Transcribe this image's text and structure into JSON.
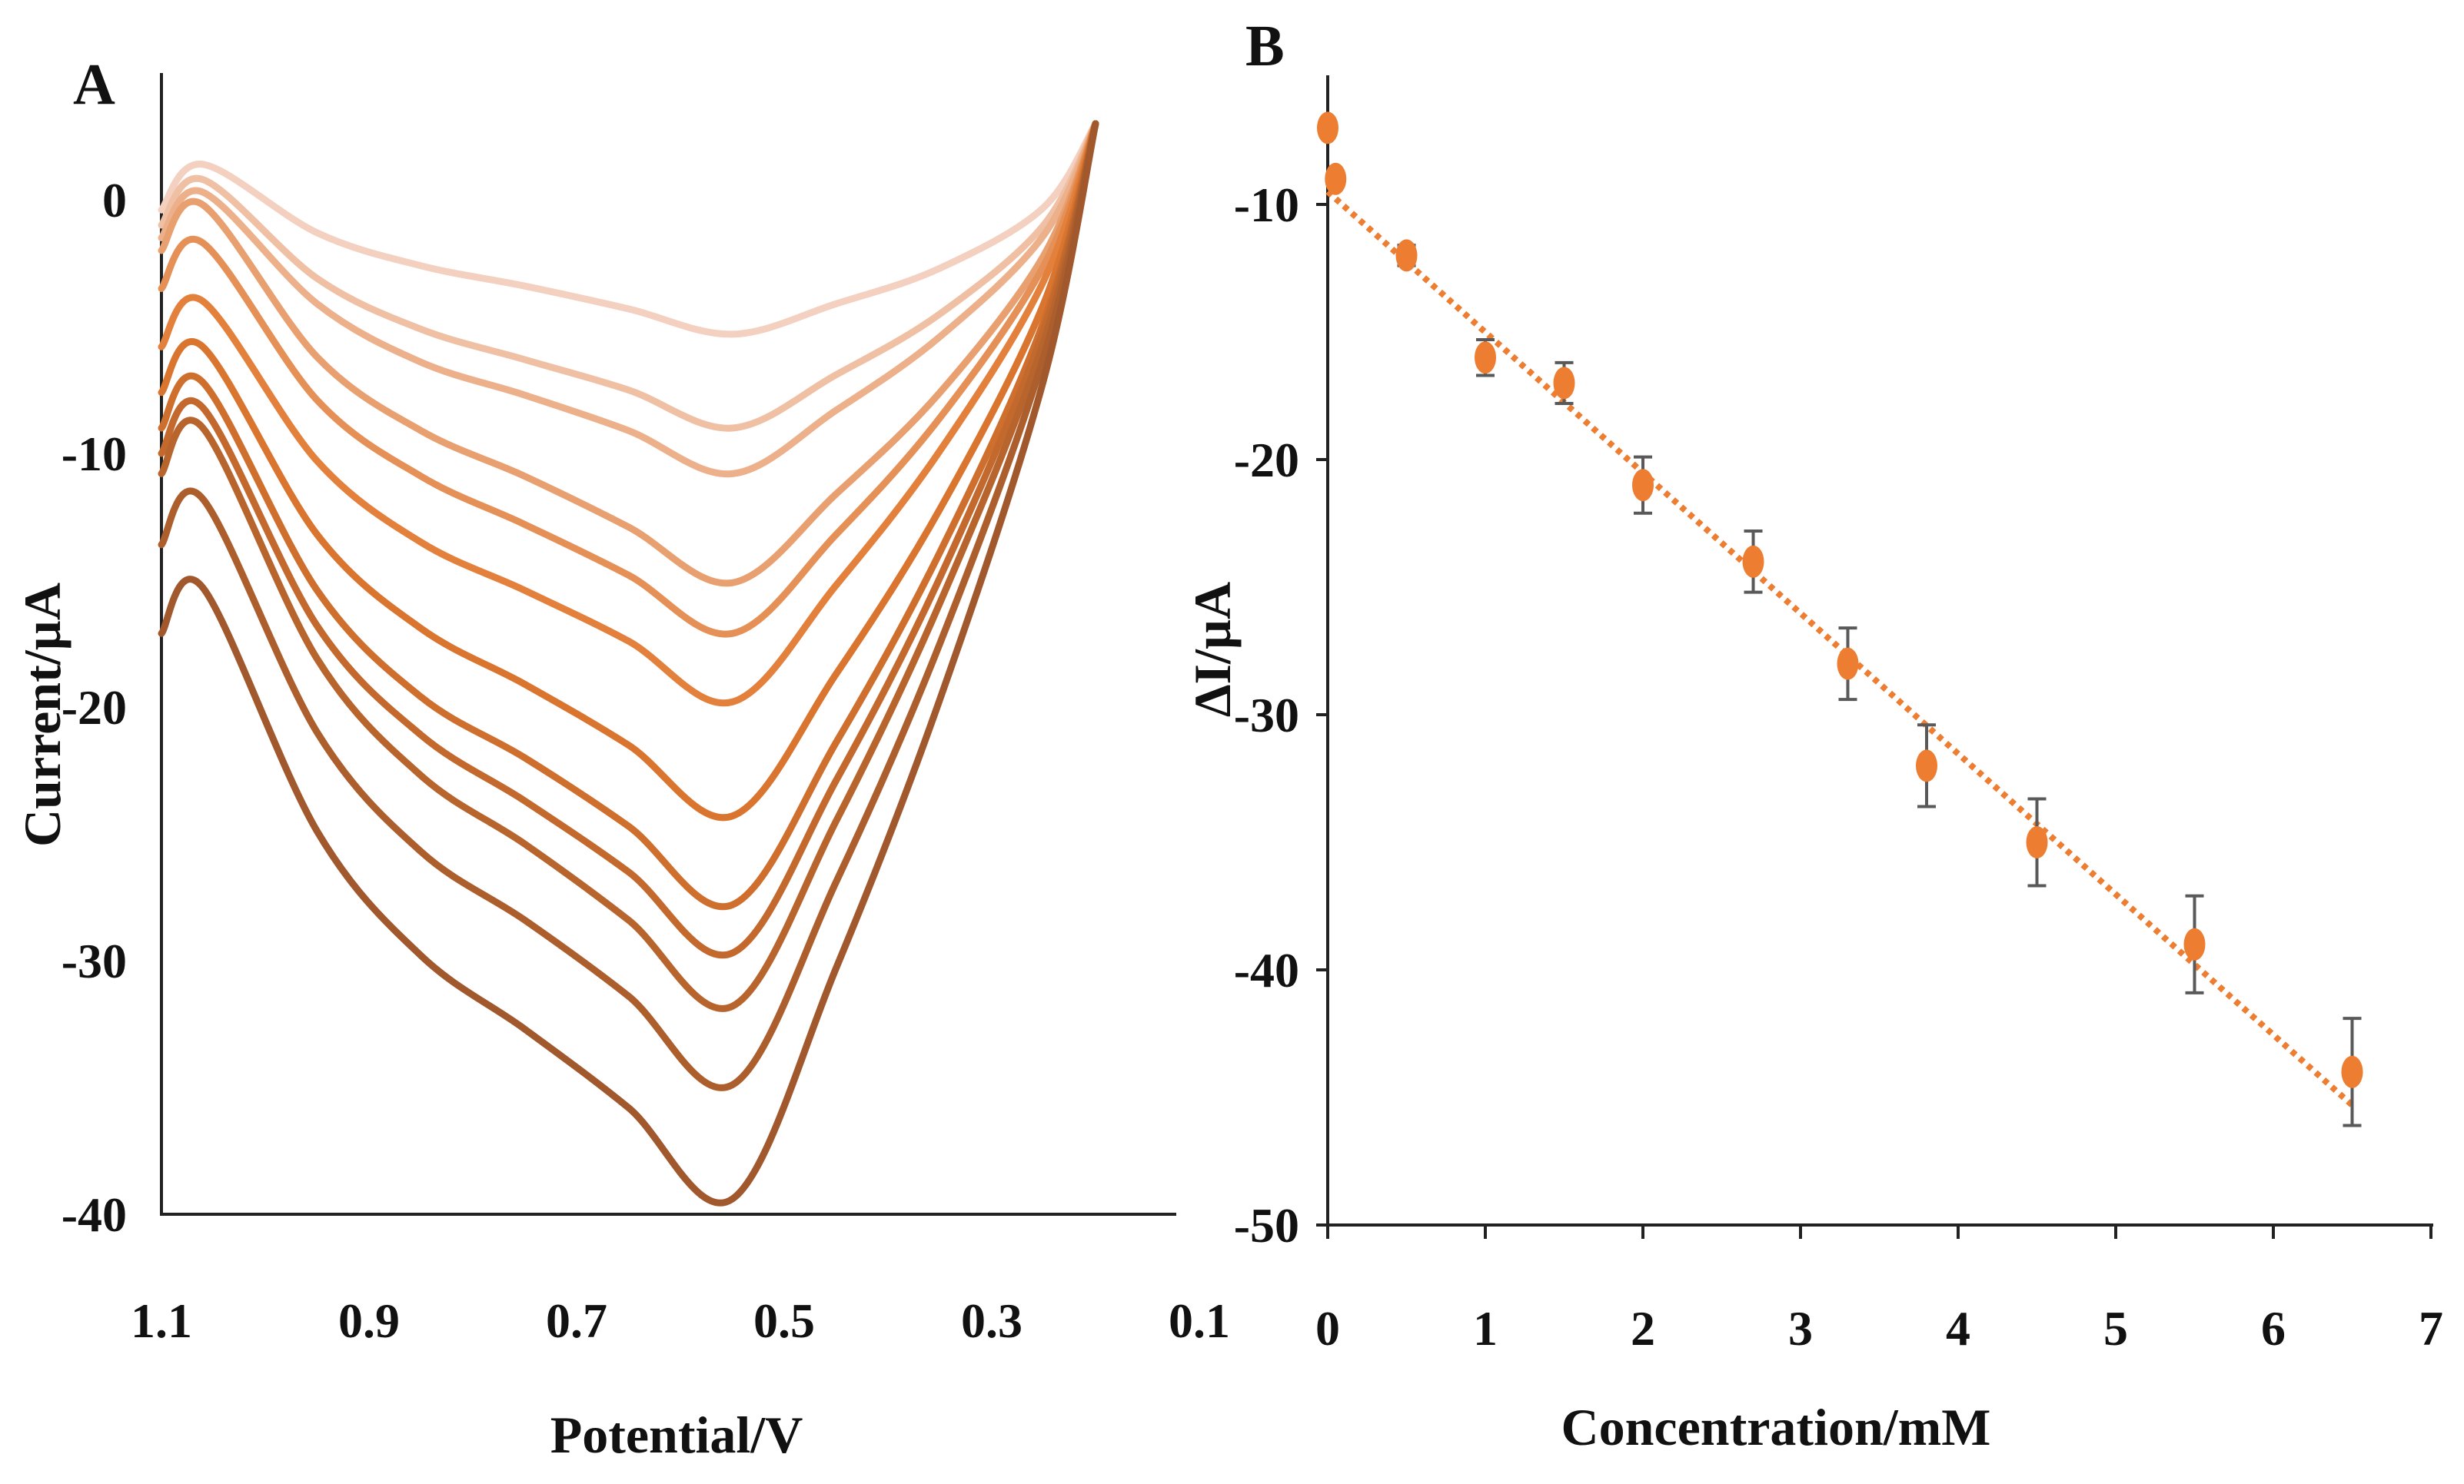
{
  "chart_data": [
    {
      "type": "line",
      "panel_label": "A",
      "xlabel": "Potential/V",
      "ylabel": "Current/µA",
      "xlim": [
        1.1,
        0.1
      ],
      "ylim": [
        -40,
        5
      ],
      "x_ticks": [
        "1.1",
        "0.9",
        "0.7",
        "0.5",
        "0.3",
        "0.1"
      ],
      "x_tick_values": [
        1.1,
        0.9,
        0.7,
        0.5,
        0.3,
        0.1
      ],
      "y_ticks": [
        "0",
        "-10",
        "-20",
        "-30",
        "-40"
      ],
      "y_tick_values": [
        0,
        -10,
        -20,
        -30,
        -40
      ],
      "grid": false,
      "x": [
        1.1,
        1.06,
        0.95,
        0.85,
        0.75,
        0.65,
        0.55,
        0.45,
        0.35,
        0.25,
        0.2
      ],
      "color_light": "#f3d0bf",
      "color_mid": "#e0782f",
      "color_dark": "#a0582c",
      "series": [
        {
          "values": [
            -0.4,
            1.4,
            -1.3,
            -2.6,
            -3.4,
            -4.3,
            -5.3,
            -4.1,
            -2.7,
            -0.3,
            3
          ]
        },
        {
          "values": [
            -1.0,
            0.8,
            -3.1,
            -5.1,
            -6.3,
            -7.5,
            -9.0,
            -6.9,
            -4.5,
            -1.0,
            3
          ]
        },
        {
          "values": [
            -1.5,
            0.3,
            -4.1,
            -6.4,
            -7.7,
            -9.1,
            -10.8,
            -8.3,
            -5.4,
            -1.4,
            3
          ]
        },
        {
          "values": [
            -2.0,
            -0.2,
            -6.2,
            -9.1,
            -10.9,
            -12.9,
            -15.1,
            -11.6,
            -7.6,
            -2.2,
            3
          ]
        },
        {
          "values": [
            -3.5,
            -1.7,
            -7.9,
            -10.9,
            -12.8,
            -14.8,
            -17.1,
            -13.2,
            -8.6,
            -2.6,
            3
          ]
        },
        {
          "values": [
            -5.8,
            -4.0,
            -10.3,
            -13.5,
            -15.4,
            -17.4,
            -19.8,
            -15.2,
            -9.9,
            -3.2,
            3
          ]
        },
        {
          "values": [
            -7.6,
            -5.8,
            -13.2,
            -16.9,
            -19.1,
            -21.5,
            -24.3,
            -18.7,
            -12.2,
            -4.1,
            3
          ]
        },
        {
          "values": [
            -9.0,
            -7.2,
            -15.4,
            -19.6,
            -22.0,
            -24.7,
            -27.8,
            -21.4,
            -13.9,
            -4.8,
            3
          ]
        },
        {
          "values": [
            -10.0,
            -8.2,
            -16.8,
            -21.1,
            -23.7,
            -26.5,
            -29.7,
            -22.9,
            -14.9,
            -5.1,
            3
          ]
        },
        {
          "values": [
            -10.8,
            -9.0,
            -18.1,
            -22.7,
            -25.4,
            -28.4,
            -31.8,
            -24.5,
            -15.9,
            -5.6,
            3
          ]
        },
        {
          "values": [
            -13.6,
            -11.8,
            -21.0,
            -25.7,
            -28.4,
            -31.4,
            -34.9,
            -26.9,
            -17.5,
            -6.2,
            3
          ]
        },
        {
          "values": [
            -17.1,
            -15.3,
            -24.9,
            -29.8,
            -32.7,
            -35.8,
            -39.4,
            -30.3,
            -19.7,
            -7.1,
            3
          ]
        }
      ]
    },
    {
      "type": "scatter",
      "panel_label": "B",
      "xlabel": "Concentration/mM",
      "ylabel": "ΔI/µA",
      "xlim": [
        0,
        7
      ],
      "ylim": [
        -50,
        -5
      ],
      "x_ticks": [
        "0",
        "1",
        "2",
        "3",
        "4",
        "5",
        "6",
        "7"
      ],
      "x_tick_values": [
        0,
        1,
        2,
        3,
        4,
        5,
        6,
        7
      ],
      "y_ticks": [
        "-10",
        "-20",
        "-30",
        "-40",
        "-50"
      ],
      "y_tick_values": [
        -10,
        -20,
        -30,
        -40,
        -50
      ],
      "grid": false,
      "marker_color": "#ed7d31",
      "errorbar_color": "#595959",
      "x": [
        0,
        0.05,
        0.5,
        1,
        1.5,
        2,
        2.7,
        3.3,
        3.8,
        4.5,
        5.5,
        6.5
      ],
      "y": [
        -7,
        -9,
        -12,
        -16,
        -17,
        -21,
        -24,
        -28,
        -32,
        -35,
        -39,
        -44
      ],
      "error": [
        0,
        0,
        0.4,
        0.7,
        0.8,
        1.1,
        1.2,
        1.4,
        1.6,
        1.7,
        1.9,
        2.1
      ],
      "trendline": {
        "style": "dotted",
        "x": [
          0,
          6.5
        ],
        "y": [
          -9.5,
          -45.3
        ]
      }
    }
  ]
}
